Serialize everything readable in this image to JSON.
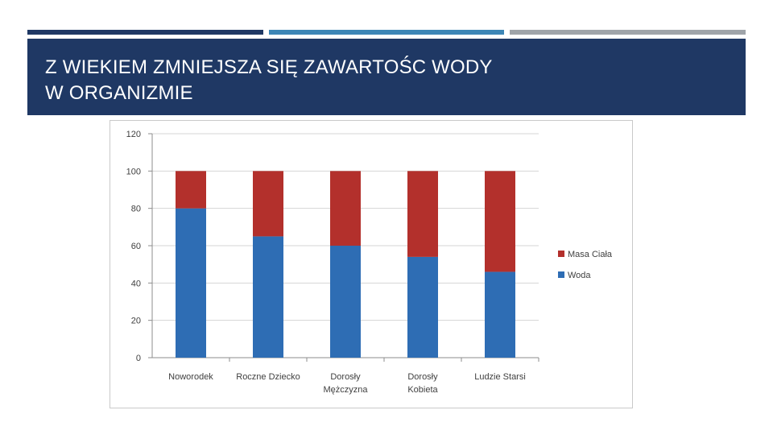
{
  "slide": {
    "title_line1": "Z WIEKIEM ZMNIEJSZA SIĘ ZAWARTOŚC WODY",
    "title_line2": "W ORGANIZMIE"
  },
  "colors": {
    "dark_navy": "#1f3864",
    "accent_blue": "#3d86b6",
    "accent_gray": "#9fa4a9",
    "woda": "#2e6db4",
    "masa": "#b3302c"
  },
  "chart_data": {
    "type": "bar",
    "stacked": true,
    "categories": [
      [
        "Noworodek"
      ],
      [
        "Roczne Dziecko"
      ],
      [
        "Dorosły",
        "Mężczyzna"
      ],
      [
        "Dorosły",
        "Kobieta"
      ],
      [
        "Ludzie Starsi"
      ]
    ],
    "series": [
      {
        "name": "Woda",
        "values": [
          80,
          65,
          60,
          54,
          46
        ]
      },
      {
        "name": "Masa Ciała",
        "values": [
          20,
          35,
          40,
          46,
          54
        ]
      }
    ],
    "legend_order": [
      "Masa Ciała",
      "Woda"
    ],
    "legend_position": "right",
    "y_ticks": [
      "0",
      "20",
      "40",
      "60",
      "80",
      "100",
      "120"
    ],
    "ylim": [
      0,
      120
    ],
    "grid": true,
    "title": "",
    "xlabel": "",
    "ylabel": ""
  }
}
